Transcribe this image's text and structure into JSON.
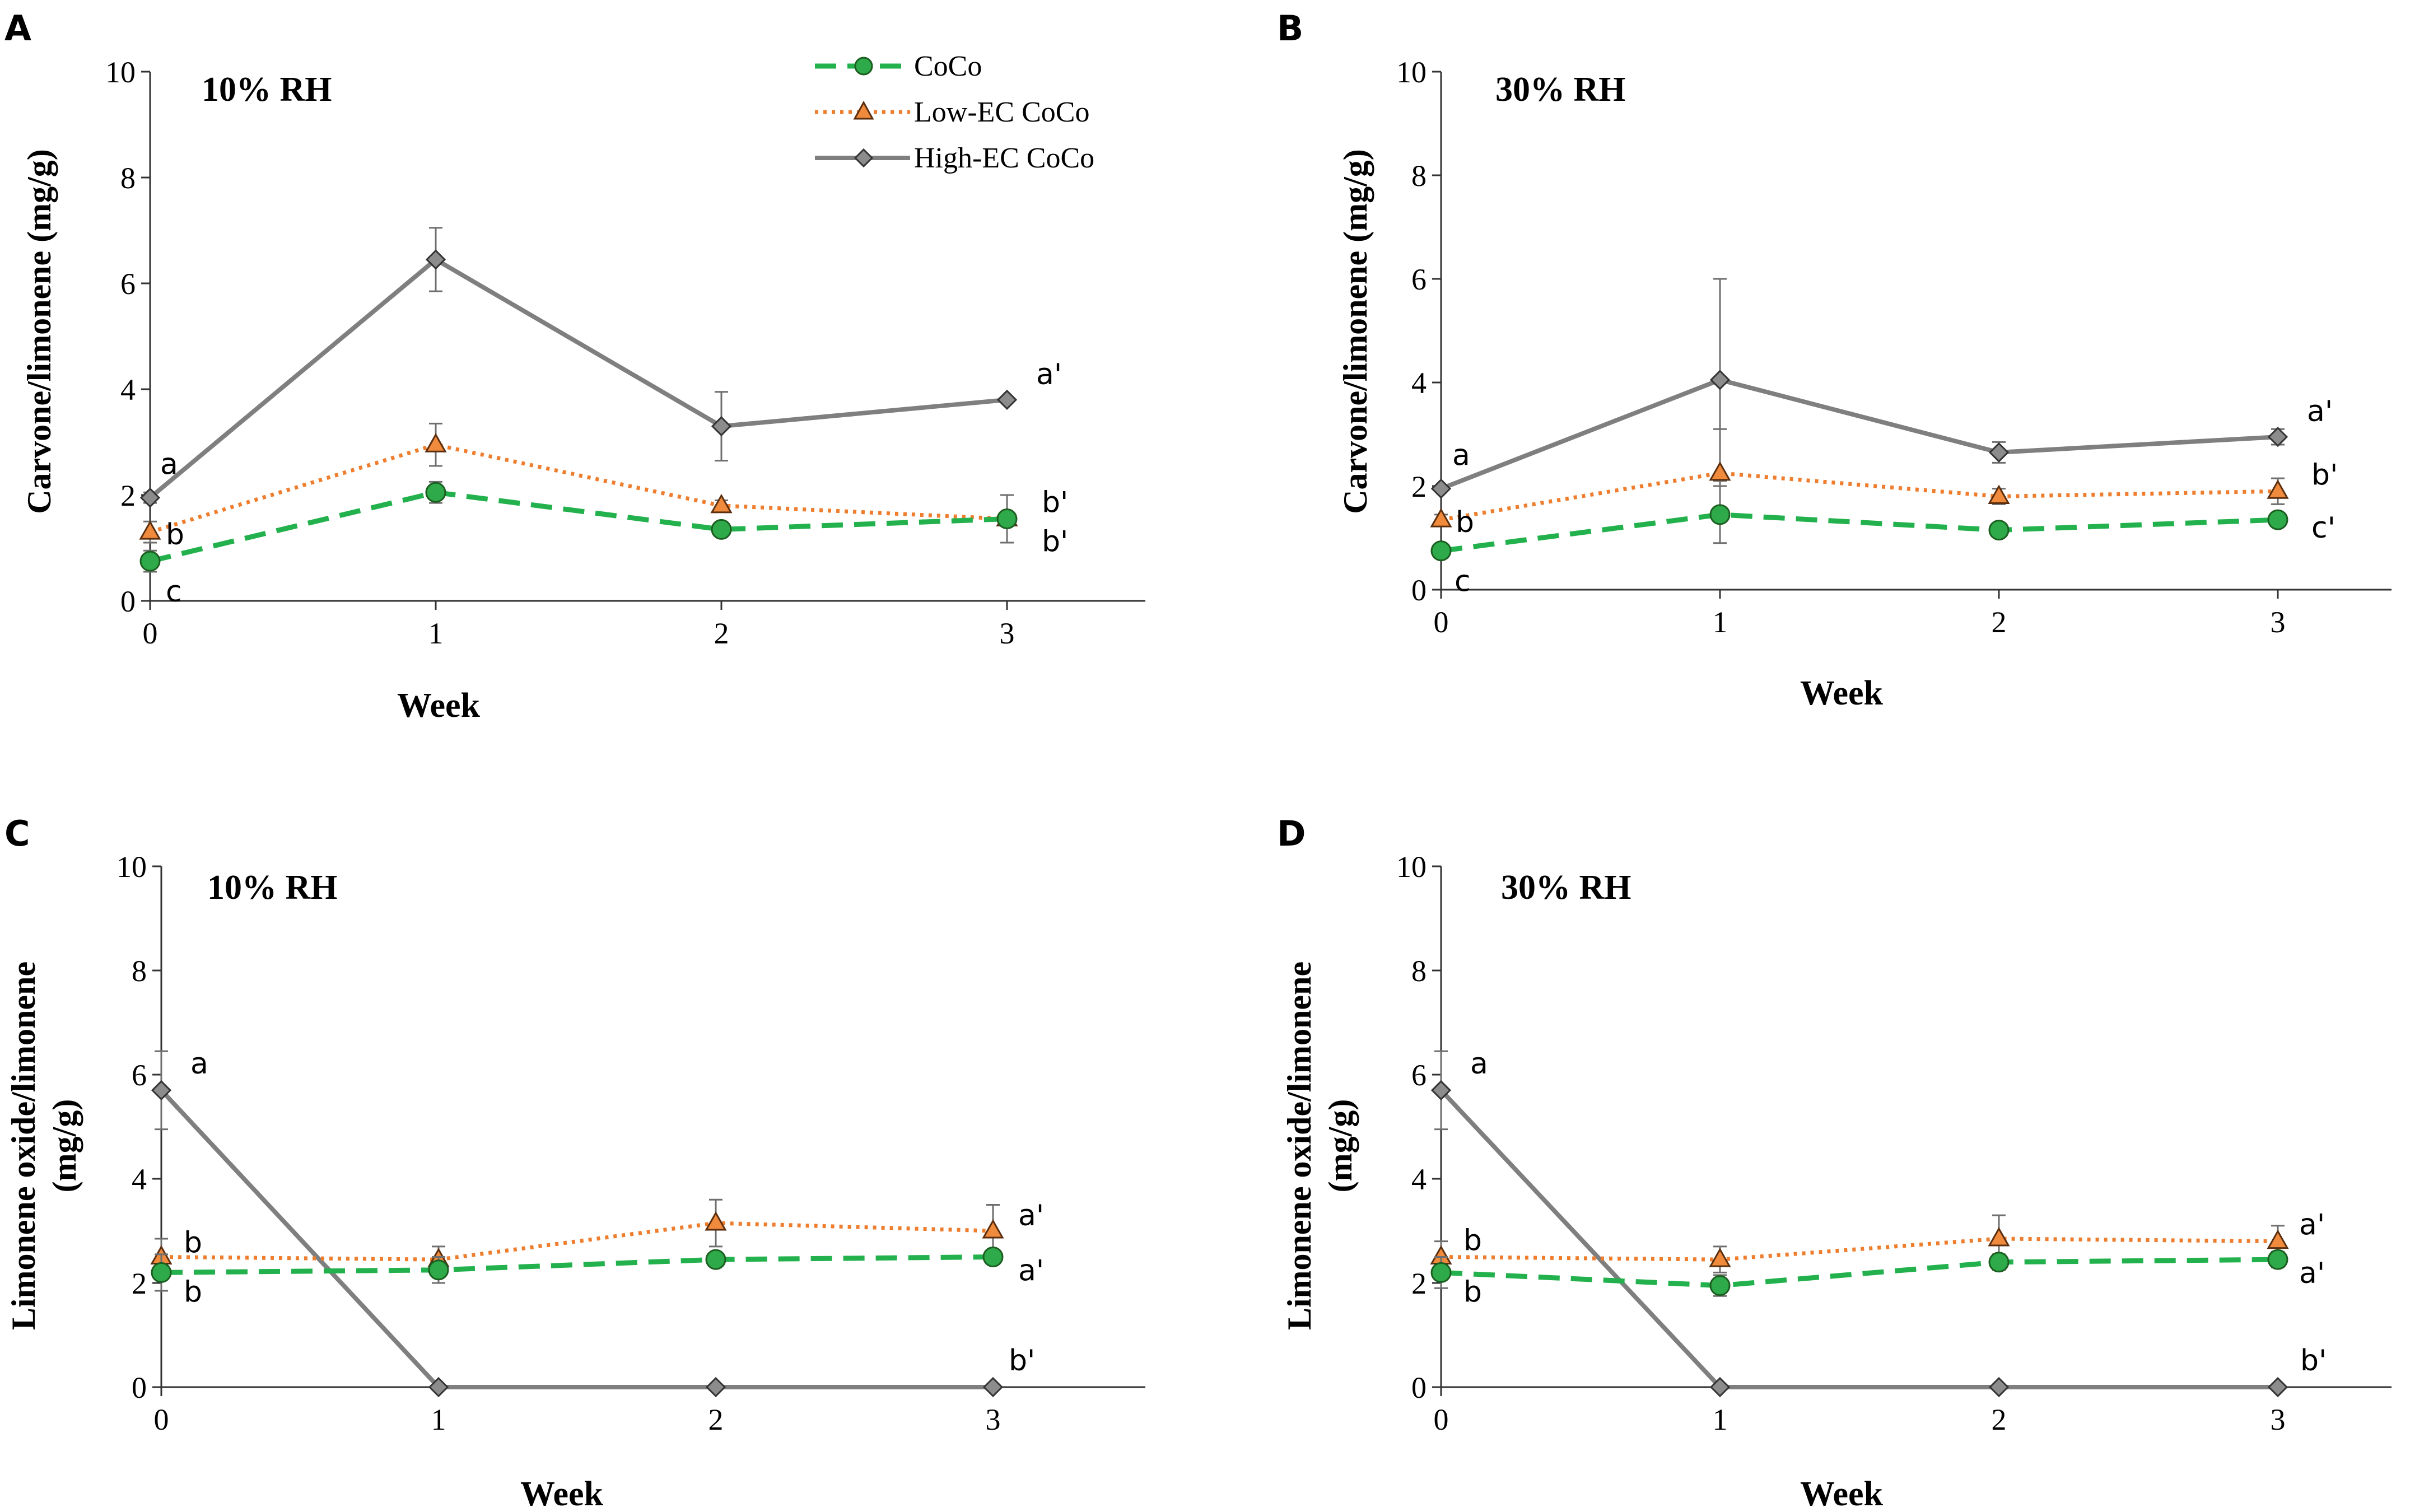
{
  "legend": {
    "items": [
      {
        "label": "CoCo",
        "series": "coco"
      },
      {
        "label": "Low-EC CoCo",
        "series": "low"
      },
      {
        "label": "High-EC CoCo",
        "series": "high"
      }
    ]
  },
  "colors": {
    "coco": "#2eaa4a",
    "coco_line": "#22b14c",
    "low": "#f08a3c",
    "low_line": "#ee7d2e",
    "high": "#8c8c8c",
    "high_line": "#7f7f7f",
    "axis": "#333333",
    "errbar": "#6e6e6e"
  },
  "chart_data": [
    {
      "panel": "A",
      "type": "line",
      "title": "10% RH",
      "xlabel": "Week",
      "ylabel": [
        "Carvone/limonene (mg/g)"
      ],
      "x": [
        0,
        1,
        2,
        3
      ],
      "xticks": [
        "0",
        "1",
        "2",
        "3"
      ],
      "ylim": [
        0,
        10
      ],
      "yticks": [
        "0",
        "2",
        "4",
        "6",
        "8",
        "10"
      ],
      "series": [
        {
          "name": "CoCo",
          "key": "coco",
          "values": [
            0.75,
            2.05,
            1.35,
            1.55
          ],
          "err": [
            0.2,
            0.2,
            0.1,
            0.45
          ]
        },
        {
          "name": "Low-EC CoCo",
          "key": "low",
          "values": [
            1.3,
            2.95,
            1.8,
            1.55
          ],
          "err": [
            0.2,
            0.4,
            0.1,
            0.45
          ]
        },
        {
          "name": "High-EC CoCo",
          "key": "high",
          "values": [
            1.95,
            6.45,
            3.3,
            3.8
          ],
          "err": [
            0.1,
            0.6,
            0.65,
            0.05
          ]
        }
      ],
      "annotations": [
        {
          "text": "a",
          "series": "high",
          "point": 0
        },
        {
          "text": "b",
          "series": "low",
          "point": 0
        },
        {
          "text": "c",
          "series": "coco",
          "point": 0
        },
        {
          "text": "a'",
          "series": "high",
          "point": 3
        },
        {
          "text": "b'",
          "series": "low",
          "point": 3
        },
        {
          "text": "b'",
          "series": "coco",
          "point": 3
        }
      ]
    },
    {
      "panel": "B",
      "type": "line",
      "title": "30% RH",
      "xlabel": "Week",
      "ylabel": [
        "Carvone/limonene (mg/g)"
      ],
      "x": [
        0,
        1,
        2,
        3
      ],
      "xticks": [
        "0",
        "1",
        "2",
        "3"
      ],
      "ylim": [
        0,
        10
      ],
      "yticks": [
        "0",
        "2",
        "4",
        "6",
        "8",
        "10"
      ],
      "series": [
        {
          "name": "CoCo",
          "key": "coco",
          "values": [
            0.75,
            1.45,
            1.15,
            1.35
          ],
          "err": [
            0.1,
            0.55,
            0.1,
            0.1
          ]
        },
        {
          "name": "Low-EC CoCo",
          "key": "low",
          "values": [
            1.35,
            2.25,
            1.8,
            1.9
          ],
          "err": [
            0.1,
            0.85,
            0.15,
            0.25
          ]
        },
        {
          "name": "High-EC CoCo",
          "key": "high",
          "values": [
            1.95,
            4.05,
            2.65,
            2.95
          ],
          "err": [
            0.05,
            1.95,
            0.2,
            0.15
          ]
        }
      ],
      "annotations": [
        {
          "text": "a",
          "series": "high",
          "point": 0
        },
        {
          "text": "b",
          "series": "low",
          "point": 0
        },
        {
          "text": "c",
          "series": "coco",
          "point": 0
        },
        {
          "text": "a'",
          "series": "high",
          "point": 3
        },
        {
          "text": "b'",
          "series": "low",
          "point": 3
        },
        {
          "text": "c'",
          "series": "coco",
          "point": 3
        }
      ]
    },
    {
      "panel": "C",
      "type": "line",
      "title": "10% RH",
      "xlabel": "Week",
      "ylabel": [
        "Limonene oxide/limonene",
        "(mg/g)"
      ],
      "x": [
        0,
        1,
        2,
        3
      ],
      "xticks": [
        "0",
        "1",
        "2",
        "3"
      ],
      "ylim": [
        0,
        10
      ],
      "yticks": [
        "0",
        "2",
        "4",
        "6",
        "8",
        "10"
      ],
      "series": [
        {
          "name": "CoCo",
          "key": "coco",
          "values": [
            2.2,
            2.25,
            2.45,
            2.5
          ],
          "err": [
            0.35,
            0.25,
            0.1,
            0.1
          ]
        },
        {
          "name": "Low-EC CoCo",
          "key": "low",
          "values": [
            2.5,
            2.45,
            3.15,
            3.0
          ],
          "err": [
            0.35,
            0.25,
            0.45,
            0.5
          ]
        },
        {
          "name": "High-EC CoCo",
          "key": "high",
          "values": [
            5.7,
            0.0,
            0.0,
            0.0
          ],
          "err": [
            0.75,
            0.0,
            0.0,
            0.0
          ]
        }
      ],
      "annotations": [
        {
          "text": "a",
          "series": "high",
          "point": 0
        },
        {
          "text": "b",
          "series": "low",
          "point": 0
        },
        {
          "text": "b",
          "series": "coco",
          "point": 0
        },
        {
          "text": "a'",
          "series": "low",
          "point": 3
        },
        {
          "text": "a'",
          "series": "coco",
          "point": 3
        },
        {
          "text": "b'",
          "series": "high",
          "point": 3
        }
      ]
    },
    {
      "panel": "D",
      "type": "line",
      "title": "30% RH",
      "xlabel": "Week",
      "ylabel": [
        "Limonene oxide/limonene",
        "(mg/g)"
      ],
      "x": [
        0,
        1,
        2,
        3
      ],
      "xticks": [
        "0",
        "1",
        "2",
        "3"
      ],
      "ylim": [
        0,
        10
      ],
      "yticks": [
        "0",
        "2",
        "4",
        "6",
        "8",
        "10"
      ],
      "series": [
        {
          "name": "CoCo",
          "key": "coco",
          "values": [
            2.2,
            1.95,
            2.4,
            2.45
          ],
          "err": [
            0.3,
            0.2,
            0.15,
            0.15
          ]
        },
        {
          "name": "Low-EC CoCo",
          "key": "low",
          "values": [
            2.5,
            2.45,
            2.85,
            2.8
          ],
          "err": [
            0.3,
            0.25,
            0.45,
            0.3
          ]
        },
        {
          "name": "High-EC CoCo",
          "key": "high",
          "values": [
            5.7,
            0.0,
            0.0,
            0.0
          ],
          "err": [
            0.75,
            0.0,
            0.0,
            0.0
          ]
        }
      ],
      "annotations": [
        {
          "text": "a",
          "series": "high",
          "point": 0
        },
        {
          "text": "b",
          "series": "low",
          "point": 0
        },
        {
          "text": "b",
          "series": "coco",
          "point": 0
        },
        {
          "text": "a'",
          "series": "low",
          "point": 3
        },
        {
          "text": "a'",
          "series": "coco",
          "point": 3
        },
        {
          "text": "b'",
          "series": "high",
          "point": 3
        }
      ]
    }
  ]
}
